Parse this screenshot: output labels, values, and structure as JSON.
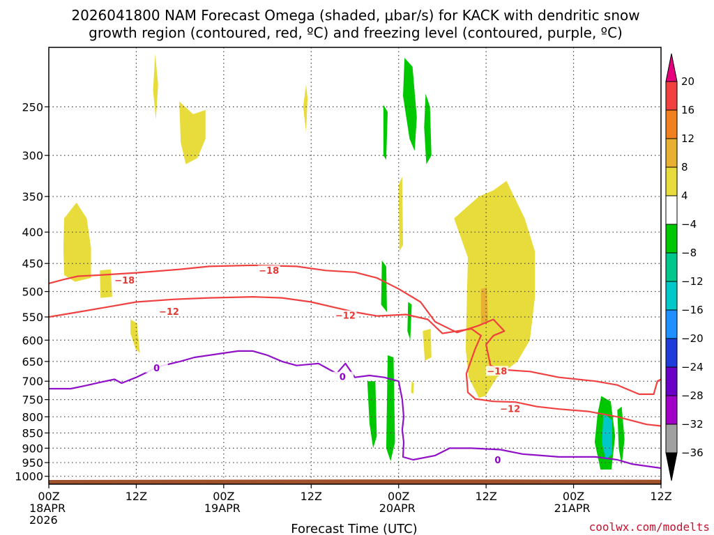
{
  "chart_data": {
    "type": "heatmap",
    "title_line1": "2026041800 NAM Forecast Omega (shaded, μbar/s) for KACK with dendritic snow",
    "title_line2": "growth region (contoured, red, ºC) and freezing level (contoured, purple, ºC)",
    "xlabel": "Forecast Time (UTC)",
    "x_ticks": [
      {
        "hour": 0,
        "l1": "00Z",
        "l2": "18APR",
        "l3": "2026"
      },
      {
        "hour": 12,
        "l1": "12Z",
        "l2": "",
        "l3": ""
      },
      {
        "hour": 24,
        "l1": "00Z",
        "l2": "19APR",
        "l3": ""
      },
      {
        "hour": 36,
        "l1": "12Z",
        "l2": "",
        "l3": ""
      },
      {
        "hour": 48,
        "l1": "00Z",
        "l2": "20APR",
        "l3": ""
      },
      {
        "hour": 60,
        "l1": "12Z",
        "l2": "",
        "l3": ""
      },
      {
        "hour": 72,
        "l1": "00Z",
        "l2": "21APR",
        "l3": ""
      },
      {
        "hour": 84,
        "l1": "12Z",
        "l2": "",
        "l3": ""
      }
    ],
    "x_range_hours": [
      0,
      84
    ],
    "y_ticks_hpa": [
      250,
      300,
      350,
      400,
      450,
      500,
      550,
      600,
      650,
      700,
      750,
      800,
      850,
      900,
      950,
      1000
    ],
    "y_range_hpa": [
      200,
      1030
    ],
    "y_scale": "log-pressure",
    "grid": true,
    "colorbar": {
      "labels": [
        "20",
        "16",
        "12",
        "8",
        "4",
        "−4",
        "−8",
        "−12",
        "−16",
        "−20",
        "−24",
        "−28",
        "−32",
        "−36"
      ],
      "bins": [
        {
          "range": ">20",
          "color": "#e6007e"
        },
        {
          "range": "16 to 20",
          "color": "#f04040"
        },
        {
          "range": "12 to 16",
          "color": "#f08020"
        },
        {
          "range": "8 to 12",
          "color": "#e8b030"
        },
        {
          "range": "4 to 8",
          "color": "#e8dc3c"
        },
        {
          "range": "-4 to 4",
          "color": "#ffffff"
        },
        {
          "range": "-8 to -4",
          "color": "#00c800"
        },
        {
          "range": "-12 to -8",
          "color": "#00c88c"
        },
        {
          "range": "-16 to -12",
          "color": "#00c8c8"
        },
        {
          "range": "-20 to -16",
          "color": "#1e90ff"
        },
        {
          "range": "-24 to -20",
          "color": "#1e3cdc"
        },
        {
          "range": "-28 to -24",
          "color": "#6a00c8"
        },
        {
          "range": "-32 to -28",
          "color": "#a000c8"
        },
        {
          "range": "-36 to -32",
          "color": "#a0a0a0"
        },
        {
          "range": "<-36",
          "color": "#000000"
        }
      ]
    },
    "omega_regions": [
      {
        "color": "#e8dc3c",
        "points": [
          [
            14.6,
            205
          ],
          [
            15,
            230
          ],
          [
            14.7,
            262
          ],
          [
            14.3,
            235
          ]
        ]
      },
      {
        "color": "#e8dc3c",
        "points": [
          [
            17.9,
            245
          ],
          [
            19.8,
            257
          ],
          [
            21.5,
            253
          ],
          [
            21.5,
            282
          ],
          [
            20.4,
            303
          ],
          [
            18.8,
            310
          ],
          [
            18.1,
            286
          ]
        ]
      },
      {
        "color": "#e8dc3c",
        "points": [
          [
            2.1,
            380
          ],
          [
            3.8,
            358
          ],
          [
            5.2,
            380
          ],
          [
            5.8,
            425
          ],
          [
            5.8,
            475
          ],
          [
            3.6,
            482
          ],
          [
            2.1,
            470
          ],
          [
            2,
            425
          ]
        ]
      },
      {
        "color": "#e8dc3c",
        "points": [
          [
            7,
            462
          ],
          [
            8.5,
            460
          ],
          [
            8.7,
            510
          ],
          [
            7.1,
            512
          ]
        ]
      },
      {
        "color": "#e8dc3c",
        "points": [
          [
            11.2,
            555
          ],
          [
            12.1,
            563
          ],
          [
            12.5,
            630
          ],
          [
            11.9,
            620
          ],
          [
            11.2,
            585
          ]
        ]
      },
      {
        "color": "#e8dc3c",
        "points": [
          [
            35.3,
            230
          ],
          [
            35.5,
            242
          ],
          [
            35.3,
            275
          ],
          [
            34.9,
            250
          ]
        ]
      },
      {
        "color": "#e8dc3c",
        "points": [
          [
            48,
            335
          ],
          [
            48.5,
            325
          ],
          [
            48.6,
            420
          ],
          [
            48.1,
            430
          ]
        ]
      },
      {
        "color": "#e8dc3c",
        "points": [
          [
            55.6,
            380
          ],
          [
            59,
            350
          ],
          [
            61,
            342
          ],
          [
            62.8,
            330
          ],
          [
            65.3,
            380
          ],
          [
            66.7,
            430
          ],
          [
            66.7,
            510
          ],
          [
            66,
            600
          ],
          [
            64.3,
            650
          ],
          [
            61.5,
            690
          ],
          [
            59.9,
            740
          ],
          [
            59,
            745
          ],
          [
            57.6,
            690
          ],
          [
            57.2,
            620
          ],
          [
            57.5,
            440
          ]
        ]
      },
      {
        "color": "#e8dc3c",
        "points": [
          [
            51.3,
            580
          ],
          [
            52.4,
            575
          ],
          [
            52.5,
            640
          ],
          [
            51.6,
            648
          ]
        ]
      },
      {
        "color": "#e8dc3c",
        "points": [
          [
            46.5,
            650
          ],
          [
            46.7,
            642
          ],
          [
            46.8,
            680
          ],
          [
            46.5,
            685
          ]
        ]
      },
      {
        "color": "#e8dc3c",
        "points": [
          [
            49.8,
            700
          ],
          [
            50.1,
            705
          ],
          [
            50,
            735
          ],
          [
            49.7,
            730
          ]
        ]
      },
      {
        "color": "#e8b030",
        "points": [
          [
            59.3,
            495
          ],
          [
            60.1,
            492
          ],
          [
            60.3,
            560
          ],
          [
            59.3,
            565
          ]
        ]
      },
      {
        "color": "#00c800",
        "points": [
          [
            48.8,
            208
          ],
          [
            49.9,
            215
          ],
          [
            50.5,
            260
          ],
          [
            50.2,
            295
          ],
          [
            49.5,
            282
          ],
          [
            48.6,
            240
          ]
        ]
      },
      {
        "color": "#00c800",
        "points": [
          [
            45.9,
            248
          ],
          [
            46.5,
            255
          ],
          [
            46.3,
            305
          ],
          [
            45.9,
            300
          ]
        ]
      },
      {
        "color": "#00c800",
        "points": [
          [
            51.7,
            238
          ],
          [
            52.3,
            250
          ],
          [
            52.5,
            300
          ],
          [
            51.8,
            310
          ],
          [
            51.5,
            270
          ]
        ]
      },
      {
        "color": "#00c800",
        "points": [
          [
            45.7,
            445
          ],
          [
            46.3,
            455
          ],
          [
            46.4,
            540
          ],
          [
            45.6,
            525
          ]
        ]
      },
      {
        "color": "#00c800",
        "points": [
          [
            49.3,
            520
          ],
          [
            49.8,
            525
          ],
          [
            49.6,
            600
          ],
          [
            49.2,
            580
          ]
        ]
      },
      {
        "color": "#00c800",
        "points": [
          [
            43.7,
            700
          ],
          [
            44.8,
            700
          ],
          [
            45,
            860
          ],
          [
            44.5,
            900
          ],
          [
            44,
            820
          ]
        ]
      },
      {
        "color": "#00c800",
        "points": [
          [
            46.5,
            635
          ],
          [
            47.3,
            640
          ],
          [
            47.5,
            880
          ],
          [
            46.9,
            945
          ],
          [
            46.3,
            900
          ]
        ]
      },
      {
        "color": "#00c800",
        "points": [
          [
            75.8,
            740
          ],
          [
            77.1,
            755
          ],
          [
            77.7,
            860
          ],
          [
            77.2,
            975
          ],
          [
            75.7,
            975
          ],
          [
            74.9,
            880
          ],
          [
            75.3,
            790
          ]
        ]
      },
      {
        "color": "#00c800",
        "points": [
          [
            78,
            780
          ],
          [
            78.6,
            770
          ],
          [
            79,
            870
          ],
          [
            78.6,
            960
          ],
          [
            78.2,
            900
          ]
        ]
      },
      {
        "color": "#00c8c8",
        "points": [
          [
            76.1,
            790
          ],
          [
            77.3,
            810
          ],
          [
            77.3,
            920
          ],
          [
            76.4,
            940
          ],
          [
            75.9,
            880
          ]
        ]
      }
    ],
    "dgz_contours": [
      {
        "label": "−18",
        "label_positions": [
          [
            10.4,
            480
          ],
          [
            30.2,
            463
          ],
          [
            61.5,
            675
          ]
        ],
        "points": [
          [
            0,
            485
          ],
          [
            2,
            478
          ],
          [
            4,
            472
          ],
          [
            7,
            470
          ],
          [
            12,
            466
          ],
          [
            18,
            460
          ],
          [
            22,
            455
          ],
          [
            28,
            453
          ],
          [
            34,
            455
          ],
          [
            38,
            462
          ],
          [
            42,
            465
          ],
          [
            45,
            475
          ],
          [
            48,
            495
          ],
          [
            51,
            520
          ],
          [
            53,
            560
          ],
          [
            56,
            583
          ],
          [
            59,
            568
          ],
          [
            61,
            555
          ],
          [
            62.5,
            580
          ],
          [
            61,
            590
          ],
          [
            60,
            610
          ],
          [
            60.6,
            660
          ],
          [
            62,
            670
          ],
          [
            66,
            675
          ],
          [
            70,
            690
          ],
          [
            75,
            700
          ],
          [
            78,
            710
          ],
          [
            81,
            735
          ],
          [
            83,
            735
          ],
          [
            83.5,
            700
          ],
          [
            84,
            695
          ]
        ]
      },
      {
        "label": "−12",
        "label_positions": [
          [
            16.5,
            540
          ],
          [
            40.7,
            548
          ],
          [
            63.3,
            778
          ]
        ],
        "points": [
          [
            0,
            550
          ],
          [
            4,
            540
          ],
          [
            8,
            530
          ],
          [
            12,
            520
          ],
          [
            17,
            515
          ],
          [
            22,
            512
          ],
          [
            28,
            510
          ],
          [
            32,
            512
          ],
          [
            36,
            520
          ],
          [
            39,
            530
          ],
          [
            42,
            540
          ],
          [
            45,
            548
          ],
          [
            49,
            545
          ],
          [
            52,
            555
          ],
          [
            54,
            585
          ],
          [
            56,
            580
          ],
          [
            58,
            575
          ],
          [
            59.3,
            590
          ],
          [
            58.5,
            620
          ],
          [
            57.3,
            680
          ],
          [
            57.5,
            730
          ],
          [
            58.5,
            748
          ],
          [
            61,
            755
          ],
          [
            64,
            757
          ],
          [
            67,
            770
          ],
          [
            70,
            777
          ],
          [
            74,
            784
          ],
          [
            78,
            800
          ],
          [
            82,
            823
          ],
          [
            84,
            828
          ]
        ]
      }
    ],
    "freezing_contours": [
      {
        "label": "0",
        "label_positions": [
          [
            14.8,
            667
          ],
          [
            40.3,
            690
          ],
          [
            61.6,
            943
          ]
        ],
        "points": [
          [
            0,
            720
          ],
          [
            3,
            720
          ],
          [
            5,
            712
          ],
          [
            7,
            703
          ],
          [
            9,
            695
          ],
          [
            10,
            705
          ],
          [
            12,
            690
          ],
          [
            15,
            663
          ],
          [
            18,
            650
          ],
          [
            20,
            640
          ],
          [
            24,
            630
          ],
          [
            26,
            625
          ],
          [
            28,
            625
          ],
          [
            30,
            635
          ],
          [
            32,
            650
          ],
          [
            34,
            660
          ],
          [
            37,
            655
          ],
          [
            38,
            665
          ],
          [
            39.5,
            680
          ],
          [
            40.7,
            655
          ],
          [
            42,
            690
          ],
          [
            44,
            685
          ],
          [
            46,
            690
          ],
          [
            48,
            700
          ],
          [
            48.5,
            750
          ],
          [
            48.7,
            800
          ],
          [
            48.5,
            840
          ],
          [
            48.7,
            880
          ],
          [
            48.6,
            930
          ],
          [
            50,
            940
          ],
          [
            53,
            925
          ],
          [
            55,
            900
          ],
          [
            58,
            900
          ],
          [
            62,
            905
          ],
          [
            65,
            920
          ],
          [
            70,
            930
          ],
          [
            75,
            930
          ],
          [
            78,
            940
          ],
          [
            80,
            955
          ],
          [
            84,
            970
          ]
        ]
      }
    ],
    "ground": {
      "top_hpa": [
        1014,
        1013,
        1012,
        1012,
        1013
      ],
      "color": "#a0522d"
    }
  },
  "credit": "coolwx.com/modelts"
}
